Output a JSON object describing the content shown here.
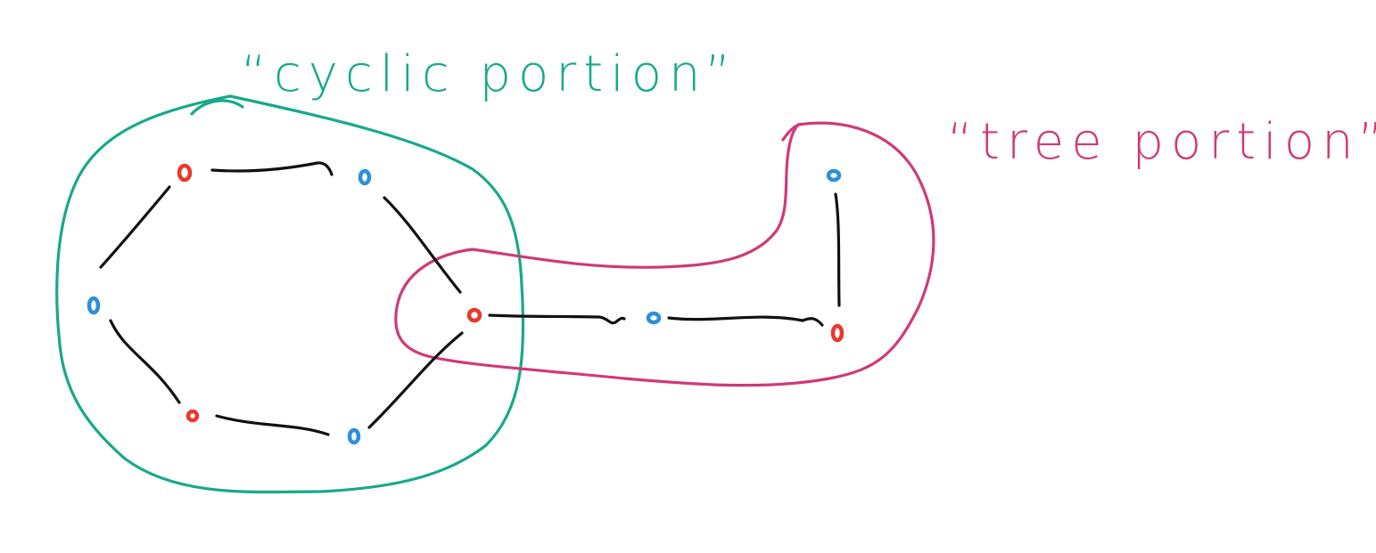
{
  "labels": {
    "cyclic": "“cyclic portion”",
    "tree": "“tree portion”"
  },
  "colors": {
    "cyclic_region": "#17a98a",
    "tree_region": "#cf3a78",
    "edge": "#111111",
    "node_red": "#e8392b",
    "node_blue": "#2f8fd8"
  },
  "nodes": [
    {
      "id": "c1",
      "color": "red"
    },
    {
      "id": "c2",
      "color": "blue"
    },
    {
      "id": "c3",
      "color": "red"
    },
    {
      "id": "c4",
      "color": "blue"
    },
    {
      "id": "c5",
      "color": "red"
    },
    {
      "id": "c6",
      "color": "blue"
    },
    {
      "id": "t1",
      "color": "blue"
    },
    {
      "id": "t2",
      "color": "red"
    },
    {
      "id": "t3",
      "color": "blue"
    }
  ],
  "edges": [
    [
      "c1",
      "c2"
    ],
    [
      "c2",
      "c3"
    ],
    [
      "c3",
      "c4"
    ],
    [
      "c4",
      "c5"
    ],
    [
      "c5",
      "c6"
    ],
    [
      "c6",
      "c1"
    ],
    [
      "c3",
      "t1"
    ],
    [
      "t1",
      "t2"
    ],
    [
      "t2",
      "t3"
    ]
  ]
}
